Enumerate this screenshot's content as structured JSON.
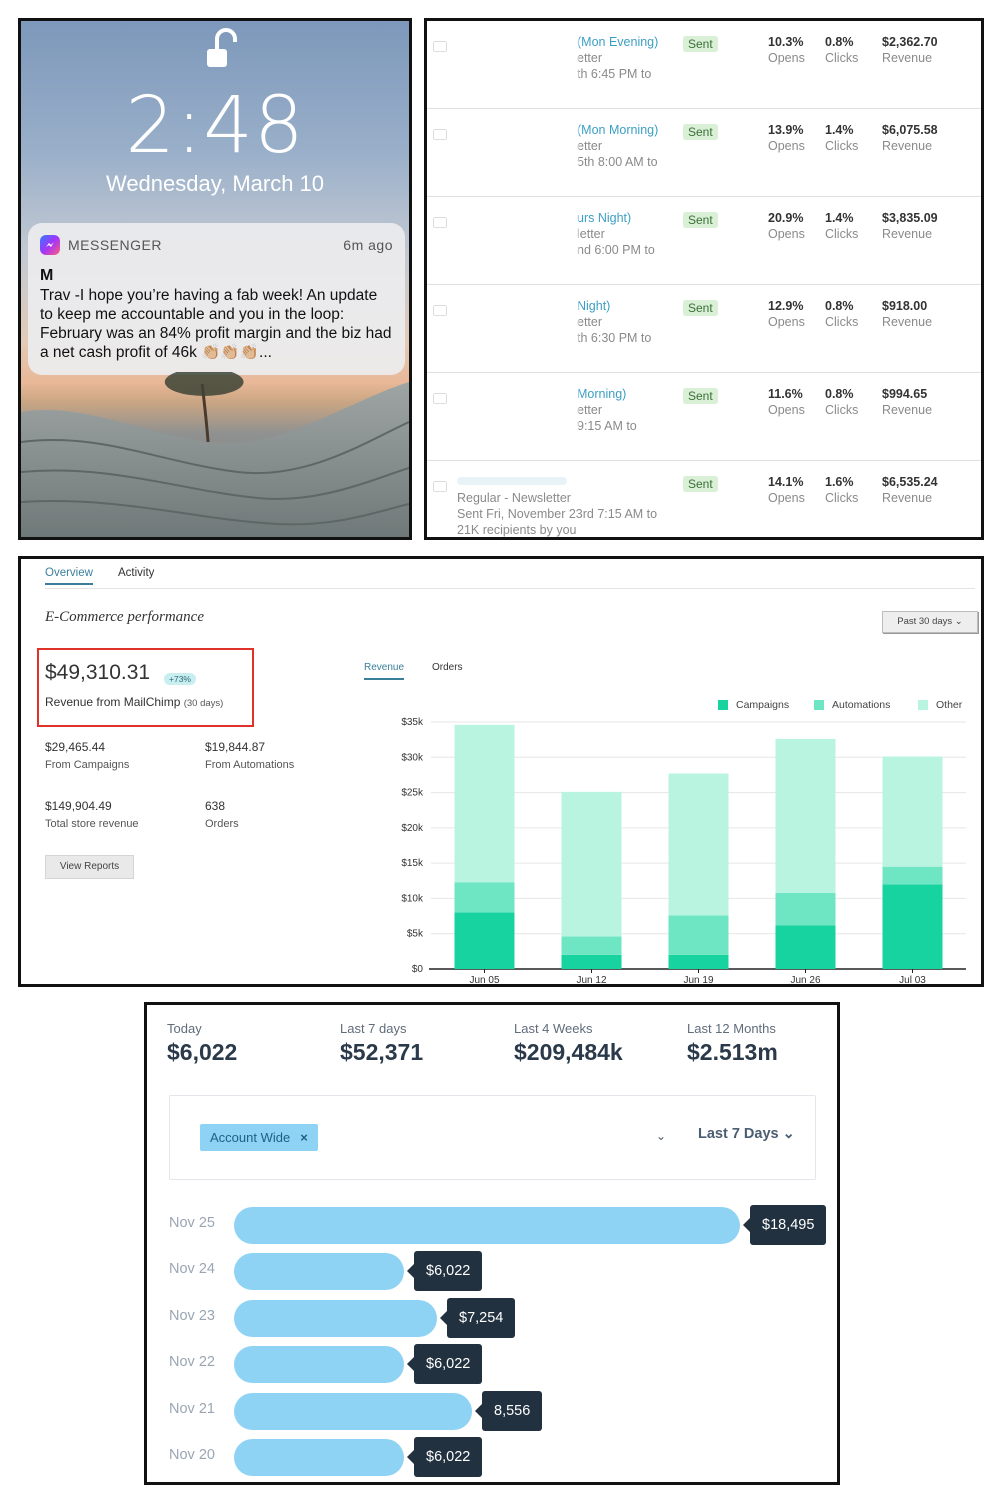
{
  "lock_screen": {
    "time": "2:48",
    "date": "Wednesday, March 10",
    "notification": {
      "app": "MESSENGER",
      "ago": "6m ago",
      "sender": "M",
      "message": "Trav -I hope you’re having a fab week!   An update to keep me accountable and you in the loop:   February was an 84% profit margin and the biz had a net cash profit of 46k 👏🏼👏🏼👏🏼..."
    }
  },
  "campaigns": {
    "rows": [
      {
        "title": "(Mon Evening)",
        "type": "etter",
        "sent": "th 6:45 PM to",
        "recipients": "",
        "status": "Sent",
        "opens": "10.3%",
        "clicks": "0.8%",
        "revenue": "$2,362.70"
      },
      {
        "title": "(Mon Morning)",
        "type": "etter",
        "sent": "5th 8:00 AM to",
        "recipients": "",
        "status": "Sent",
        "opens": "13.9%",
        "clicks": "1.4%",
        "revenue": "$6,075.58"
      },
      {
        "title": "urs Night)",
        "type": "letter",
        "sent": "nd 6:00 PM to",
        "recipients": "",
        "status": "Sent",
        "opens": "20.9%",
        "clicks": "1.4%",
        "revenue": "$3,835.09"
      },
      {
        "title": "Night)",
        "type": "etter",
        "sent": "th 6:30 PM to",
        "recipients": "",
        "status": "Sent",
        "opens": "12.9%",
        "clicks": "0.8%",
        "revenue": "$918.00"
      },
      {
        "title": "Morning)",
        "type": "etter",
        "sent": "9:15 AM to",
        "recipients": "",
        "status": "Sent",
        "opens": "11.6%",
        "clicks": "0.8%",
        "revenue": "$994.65"
      },
      {
        "title": "",
        "type": "Regular -                Newsletter",
        "sent": "Sent Fri, November 23rd 7:15 AM to",
        "recipients": "21K recipients by you",
        "status": "Sent",
        "opens": "14.1%",
        "clicks": "1.6%",
        "revenue": "$6,535.24"
      }
    ],
    "opens_label": "Opens",
    "clicks_label": "Clicks",
    "revenue_label": "Revenue"
  },
  "ecommerce": {
    "tabs": [
      "Overview",
      "Activity"
    ],
    "heading": "E-Commerce performance",
    "range_button": "Past 30 days",
    "range_chevron": "⌄",
    "highlight_value": "$49,310.31",
    "highlight_change": "+73%",
    "highlight_label": "Revenue from MailChimp",
    "highlight_period": "(30 days)",
    "kpis": [
      {
        "value": "$29,465.44",
        "label": "From Campaigns"
      },
      {
        "value": "$19,844.87",
        "label": "From Automations"
      },
      {
        "value": "$149,904.49",
        "label": "Total store revenue"
      },
      {
        "value": "638",
        "label": "Orders"
      }
    ],
    "view_reports": "View Reports",
    "chart_tabs": [
      "Revenue",
      "Orders"
    ]
  },
  "chart_data": {
    "type": "bar",
    "stacked": true,
    "categories": [
      "Jun 05",
      "Jun 12",
      "Jun 19",
      "Jun 26",
      "Jul 03"
    ],
    "series": [
      {
        "name": "Campaigns",
        "color": "#17d3a0",
        "values": [
          8000,
          2000,
          2000,
          6200,
          12000
        ]
      },
      {
        "name": "Automations",
        "color": "#6fe6c3",
        "values": [
          4300,
          2600,
          5600,
          4600,
          2500
        ]
      },
      {
        "name": "Other",
        "color": "#b9f4e1",
        "values": [
          22300,
          20500,
          20100,
          21800,
          15600
        ]
      }
    ],
    "ytick_labels": [
      "$0",
      "$5k",
      "$10k",
      "$15k",
      "$20k",
      "$25k",
      "$30k",
      "$35k"
    ],
    "ylim": [
      0,
      35000
    ],
    "legend_position": "top-right",
    "grid": true
  },
  "revenue_dashboard": {
    "stats": [
      {
        "label": "Today",
        "value": "$6,022"
      },
      {
        "label": "Last 7 days",
        "value": "$52,371"
      },
      {
        "label": "Last 4 Weeks",
        "value": "$209,484k"
      },
      {
        "label": "Last 12 Months",
        "value": "$2.513m"
      }
    ],
    "filter_chip": "Account Wide",
    "filter_chip_close": "×",
    "dropdown_chevron": "⌄",
    "period": "Last 7 Days ⌄",
    "daily": [
      {
        "date": "Nov 25",
        "label": "$18,495",
        "value": 18495
      },
      {
        "date": "Nov 24",
        "label": "$6,022",
        "value": 6022
      },
      {
        "date": "Nov 23",
        "label": "$7,254",
        "value": 7254
      },
      {
        "date": "Nov 22",
        "label": "$6,022",
        "value": 6022
      },
      {
        "date": "Nov 21",
        "label": "8,556",
        "value": 8556
      },
      {
        "date": "Nov 20",
        "label": "$6,022",
        "value": 6022
      }
    ]
  }
}
